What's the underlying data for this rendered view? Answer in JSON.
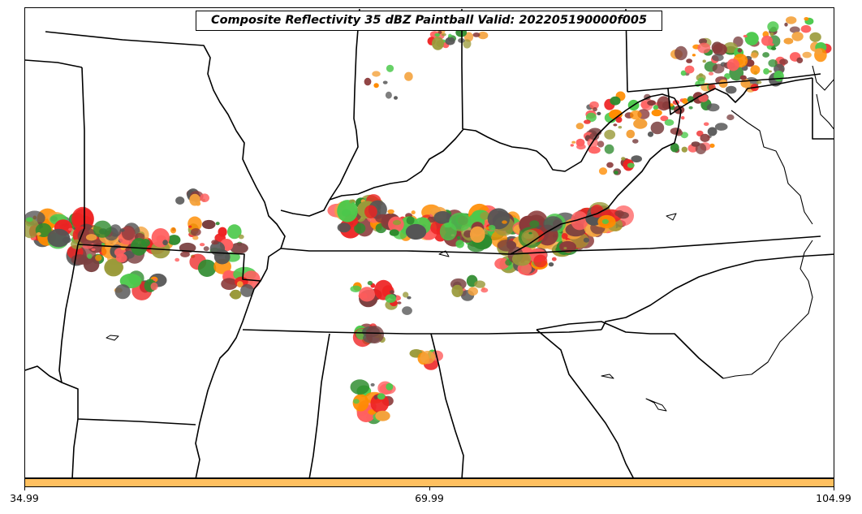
{
  "title": "Composite Reflectivity 35 dBZ Paintball Valid: 202205190000f005",
  "colorbar": {
    "color": "#ffc060",
    "ticks": [
      "34.99",
      "69.99",
      "104.99"
    ]
  },
  "palette": [
    "#ff6060",
    "#ff8c00",
    "#4cc94c",
    "#8b3a3a",
    "#9a9a3a",
    "#2e8b2e",
    "#555555",
    "#ee2222",
    "#f4a23c",
    "#7a4040"
  ],
  "map": {
    "land_color": "#ffffff",
    "border_color": "#000000",
    "features": [
      "state-borders",
      "coastline",
      "rivers",
      "reflectivity-paintball"
    ]
  }
}
